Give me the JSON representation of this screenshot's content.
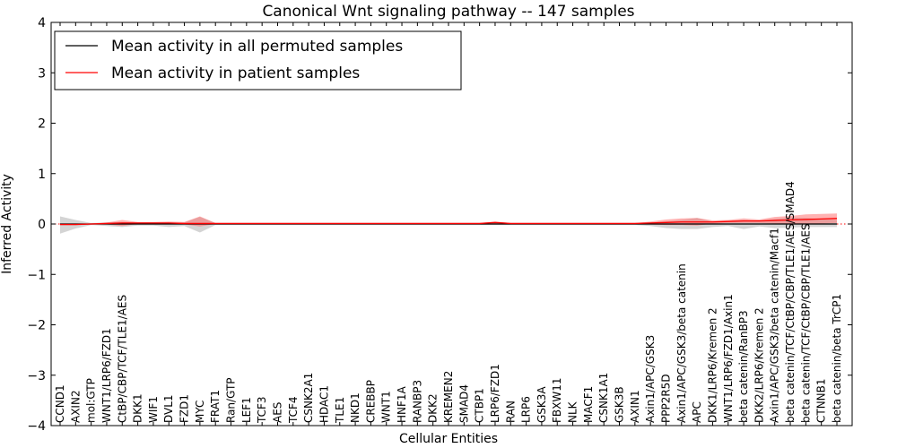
{
  "chart_data": {
    "type": "line",
    "title": "Canonical Wnt signaling pathway -- 147 samples",
    "xlabel": "Cellular Entities",
    "ylabel": "Inferred Activity",
    "ylim": [
      -4,
      4
    ],
    "yticks": [
      "−4",
      "−3",
      "−2",
      "−1",
      "0",
      "1",
      "2",
      "3",
      "4"
    ],
    "yticks_values": [
      -4,
      -3,
      -2,
      -1,
      0,
      1,
      2,
      3,
      4
    ],
    "legend_position": "top-left",
    "categories": [
      "CCND1",
      "AXIN2",
      "mol:GTP",
      "WNT1/LRP6/FZD1",
      "CtBP/CBP/TCF/TLE1/AES",
      "DKK1",
      "WIF1",
      "DVL1",
      "FZD1",
      "MYC",
      "FRAT1",
      "Ran/GTP",
      "LEF1",
      "TCF3",
      "AES",
      "TCF4",
      "CSNK2A1",
      "HDAC1",
      "TLE1",
      "NKD1",
      "CREBBP",
      "WNT1",
      "HNF1A",
      "RANBP3",
      "DKK2",
      "KREMEN2",
      "SMAD4",
      "CTBP1",
      "LRP6/FZD1",
      "RAN",
      "LRP6",
      "GSK3A",
      "FBXW11",
      "NLK",
      "MACF1",
      "CSNK1A1",
      "GSK3B",
      "AXIN1",
      "Axin1/APC/GSK3",
      "PPP2R5D",
      "Axin1/APC/GSK3/beta catenin",
      "APC",
      "DKK1/LRP6/Kremen 2",
      "WNT1/LRP6/FZD1/Axin1",
      "beta catenin/RanBP3",
      "DKK2/LRP6/Kremen 2",
      "Axin1/APC/GSK3/beta catenin/Macf1",
      "beta catenin/TCF/CtBP/CBP/TLE1/AES/SMAD4",
      "beta catenin/TCF/CtBP/CBP/TLE1/AES",
      "CTNNB1",
      "beta catenin/beta TrCP1"
    ],
    "series": [
      {
        "name": "Mean activity in all permuted samples",
        "color": "#000000",
        "band_color": "#b0b0b0",
        "values": [
          0.0,
          0.0,
          0.0,
          0.0,
          0.0,
          0.0,
          0.0,
          0.0,
          0.0,
          0.0,
          0.0,
          0.0,
          0.0,
          0.0,
          0.0,
          0.0,
          0.0,
          0.0,
          0.0,
          0.0,
          0.0,
          0.0,
          0.0,
          0.0,
          0.0,
          0.0,
          0.0,
          0.0,
          0.0,
          0.0,
          0.0,
          0.0,
          0.0,
          0.0,
          0.0,
          0.0,
          0.0,
          0.0,
          0.0,
          0.0,
          0.0,
          0.0,
          0.0,
          0.0,
          0.0,
          0.0,
          0.0,
          0.0,
          0.0,
          0.0,
          0.0
        ],
        "upper": [
          0.15,
          0.08,
          0.02,
          0.03,
          0.04,
          0.03,
          0.03,
          0.02,
          0.03,
          0.14,
          0.02,
          0.02,
          0.02,
          0.02,
          0.02,
          0.02,
          0.02,
          0.02,
          0.02,
          0.02,
          0.02,
          0.02,
          0.02,
          0.02,
          0.02,
          0.02,
          0.02,
          0.02,
          0.02,
          0.02,
          0.02,
          0.02,
          0.02,
          0.02,
          0.02,
          0.02,
          0.02,
          0.02,
          0.03,
          0.05,
          0.08,
          0.12,
          0.05,
          0.06,
          0.08,
          0.06,
          0.1,
          0.13,
          0.12,
          0.1,
          0.08
        ],
        "lower": [
          -0.19,
          -0.09,
          -0.02,
          -0.04,
          -0.06,
          -0.03,
          -0.03,
          -0.06,
          -0.04,
          -0.17,
          -0.02,
          -0.02,
          -0.02,
          -0.02,
          -0.02,
          -0.02,
          -0.02,
          -0.02,
          -0.02,
          -0.02,
          -0.02,
          -0.02,
          -0.02,
          -0.02,
          -0.02,
          -0.02,
          -0.02,
          -0.02,
          -0.02,
          -0.02,
          -0.02,
          -0.02,
          -0.02,
          -0.02,
          -0.02,
          -0.02,
          -0.02,
          -0.02,
          -0.04,
          -0.08,
          -0.1,
          -0.1,
          -0.06,
          -0.04,
          -0.1,
          -0.05,
          -0.08,
          -0.07,
          -0.06,
          -0.06,
          -0.06
        ]
      },
      {
        "name": "Mean activity in patient samples",
        "color": "#ff0000",
        "band_color": "#ff6666",
        "values": [
          -0.01,
          -0.01,
          0.0,
          0.01,
          0.02,
          0.02,
          0.02,
          0.02,
          0.01,
          0.01,
          0.01,
          0.01,
          0.01,
          0.01,
          0.01,
          0.01,
          0.01,
          0.01,
          0.01,
          0.01,
          0.01,
          0.01,
          0.01,
          0.01,
          0.01,
          0.01,
          0.01,
          0.01,
          0.03,
          0.01,
          0.01,
          0.01,
          0.01,
          0.01,
          0.01,
          0.01,
          0.01,
          0.01,
          0.02,
          0.03,
          0.04,
          0.04,
          0.04,
          0.05,
          0.06,
          0.06,
          0.07,
          0.08,
          0.09,
          0.1,
          0.11
        ],
        "upper": [
          0.0,
          0.0,
          0.01,
          0.03,
          0.08,
          0.04,
          0.04,
          0.05,
          0.04,
          0.15,
          0.02,
          0.02,
          0.02,
          0.02,
          0.02,
          0.02,
          0.02,
          0.02,
          0.02,
          0.02,
          0.02,
          0.02,
          0.02,
          0.02,
          0.02,
          0.02,
          0.02,
          0.02,
          0.05,
          0.02,
          0.02,
          0.02,
          0.02,
          0.02,
          0.02,
          0.02,
          0.02,
          0.02,
          0.05,
          0.09,
          0.11,
          0.12,
          0.07,
          0.08,
          0.11,
          0.09,
          0.14,
          0.16,
          0.19,
          0.2,
          0.21
        ],
        "lower": [
          -0.02,
          -0.02,
          -0.01,
          -0.01,
          -0.04,
          0.0,
          0.0,
          -0.01,
          -0.01,
          -0.05,
          0.0,
          0.0,
          0.0,
          0.0,
          0.0,
          0.0,
          0.0,
          0.0,
          0.0,
          0.0,
          0.0,
          0.0,
          0.0,
          0.0,
          0.0,
          0.0,
          0.0,
          0.0,
          0.01,
          0.0,
          0.0,
          0.0,
          0.0,
          0.0,
          0.0,
          0.0,
          0.0,
          0.0,
          -0.01,
          -0.02,
          -0.02,
          -0.03,
          0.01,
          0.02,
          0.02,
          0.02,
          0.01,
          0.01,
          0.0,
          0.01,
          0.02
        ]
      }
    ]
  }
}
